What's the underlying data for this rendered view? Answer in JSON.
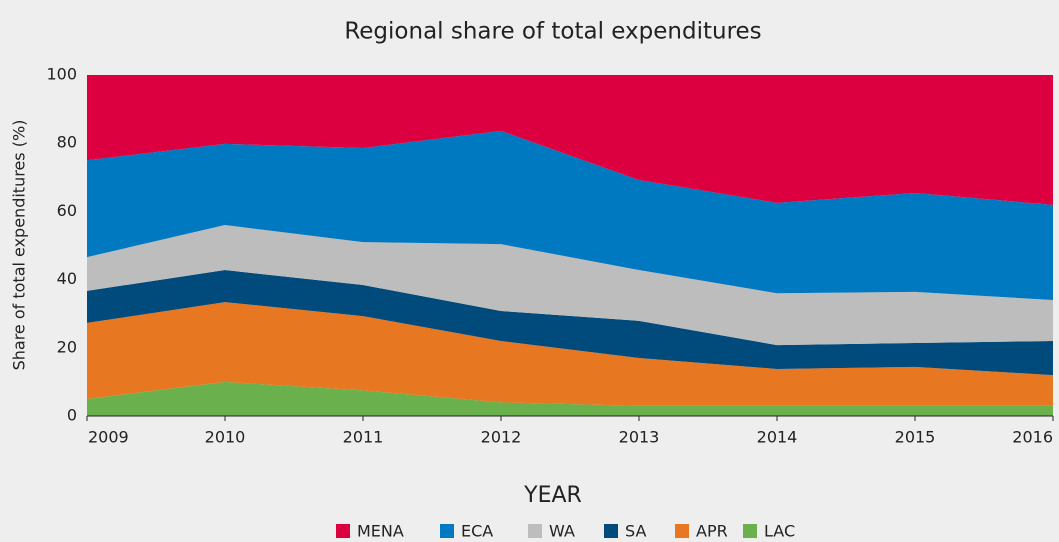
{
  "chart_data": {
    "type": "stacked_area",
    "title": "Regional share of total expenditures",
    "xlabel": "YEAR",
    "ylabel": "Share of total expenditures (%)",
    "x": [
      2009,
      2010,
      2011,
      2012,
      2013,
      2014,
      2015,
      2016
    ],
    "series": [
      {
        "name": "MENA",
        "color": "#dc0040",
        "values": [
          25,
          20.2,
          21.4,
          16.4,
          30.8,
          37.5,
          34.6,
          38.1
        ]
      },
      {
        "name": "ECA",
        "color": "#0079c1",
        "values": [
          28.4,
          23.8,
          27.6,
          33.2,
          26.4,
          26.5,
          29,
          27.9
        ]
      },
      {
        "name": "WA",
        "color": "#bdbdbd",
        "values": [
          9.9,
          13.2,
          12.6,
          19.6,
          14.9,
          15.2,
          15,
          12
        ]
      },
      {
        "name": "SA",
        "color": "#004a7c",
        "values": [
          9.4,
          9.4,
          9.1,
          8.8,
          10.9,
          7,
          7,
          10
        ]
      },
      {
        "name": "APR",
        "color": "#e87722",
        "values": [
          22.3,
          23.4,
          21.8,
          18,
          14,
          10.8,
          11.4,
          9
        ]
      },
      {
        "name": "LAC",
        "color": "#6ab04c",
        "values": [
          5,
          10,
          7.5,
          4,
          3,
          3,
          3,
          3
        ]
      }
    ],
    "xlim": [
      2009,
      2016
    ],
    "xticks": [
      2009,
      2010,
      2011,
      2012,
      2013,
      2014,
      2015,
      2016
    ],
    "ylim": [
      0,
      100
    ],
    "yticks": [
      0,
      20,
      40,
      60,
      80,
      100
    ],
    "grid": false,
    "legend": "bottom"
  }
}
